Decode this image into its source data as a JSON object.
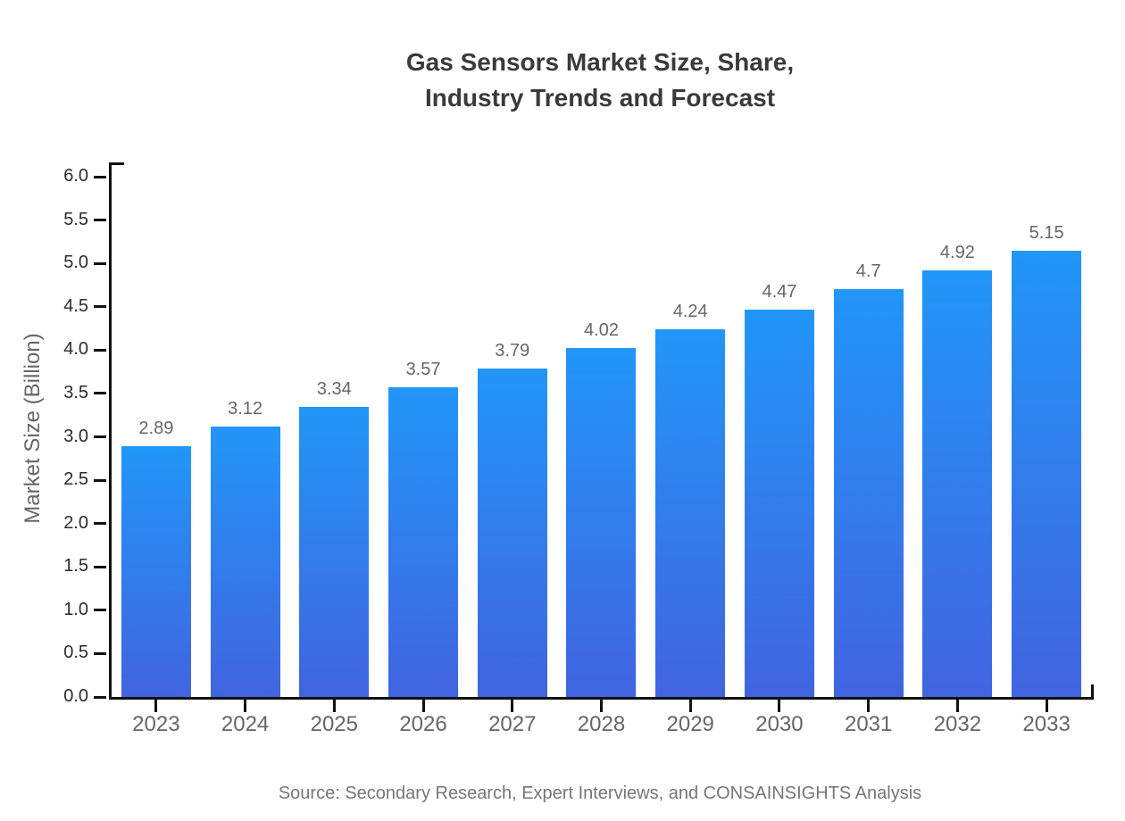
{
  "chart": {
    "title_lines": [
      "Gas Sensors Market Size, Share,",
      "Industry Trends and Forecast"
    ],
    "source": "Source: Secondary Research, Expert Interviews, and CONSAINSIGHTS Analysis"
  },
  "chart_data": {
    "type": "bar",
    "title": "Gas Sensors Market Size, Share, Industry Trends and Forecast",
    "categories": [
      "2023",
      "2024",
      "2025",
      "2026",
      "2027",
      "2028",
      "2029",
      "2030",
      "2031",
      "2032",
      "2033"
    ],
    "values": [
      2.89,
      3.12,
      3.34,
      3.57,
      3.79,
      4.02,
      4.24,
      4.47,
      4.7,
      4.92,
      5.15
    ],
    "data_labels": [
      "2.89",
      "3.12",
      "3.34",
      "3.57",
      "3.79",
      "4.02",
      "4.24",
      "4.47",
      "4.7",
      "4.92",
      "5.15"
    ],
    "xlabel": "",
    "ylabel": "Market Size (Billion)",
    "ylim": [
      0,
      6
    ],
    "ytick_step": 0.5,
    "ytick_labels": [
      "0.0",
      "0.5",
      "1.0",
      "1.5",
      "2.0",
      "2.5",
      "3.0",
      "3.5",
      "4.0",
      "4.5",
      "5.0",
      "5.5",
      "6.0"
    ],
    "grid": false,
    "legend": false,
    "colors": {
      "bar_gradient_top": "#2196F9",
      "bar_gradient_bottom": "#4164DF",
      "axis": "#111111",
      "title": "#3a3a3a",
      "ytick_label": "#2b2b2b",
      "xtick_label": "#666666",
      "data_label": "#666666",
      "ylabel": "#666666",
      "source": "#767676"
    }
  }
}
